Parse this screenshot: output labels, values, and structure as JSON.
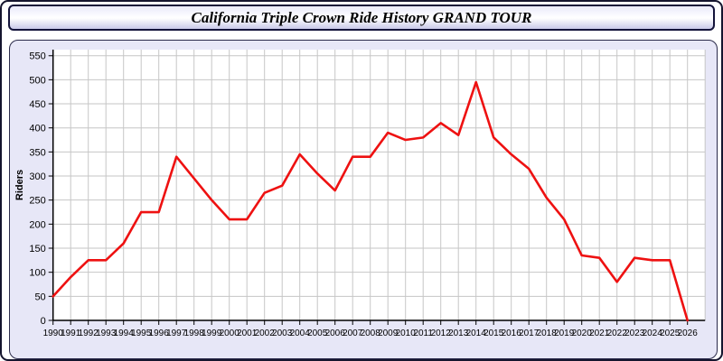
{
  "header": {
    "title": "California Triple Crown Ride History GRAND TOUR"
  },
  "chart_data": {
    "type": "line",
    "title": "California Triple Crown Ride History GRAND TOUR",
    "xlabel": "",
    "ylabel": "Riders",
    "categories": [
      "1990",
      "1991",
      "1992",
      "1993",
      "1994",
      "1995",
      "1996",
      "1997",
      "1998",
      "1999",
      "2000",
      "2001",
      "2002",
      "2003",
      "2004",
      "2005",
      "2006",
      "2007",
      "2008",
      "2009",
      "2010",
      "2011",
      "2012",
      "2013",
      "2014",
      "2015",
      "2016",
      "2017",
      "2018",
      "2019",
      "2020",
      "2021",
      "2022",
      "2023",
      "2024",
      "2025",
      "2026"
    ],
    "values": [
      50,
      90,
      125,
      125,
      160,
      225,
      225,
      340,
      295,
      250,
      210,
      210,
      265,
      280,
      345,
      305,
      270,
      340,
      340,
      390,
      375,
      380,
      410,
      385,
      495,
      380,
      345,
      315,
      255,
      210,
      135,
      130,
      80,
      130,
      125,
      125,
      0
    ],
    "ylim": [
      0,
      550
    ],
    "yticks": [
      0,
      50,
      100,
      150,
      200,
      250,
      300,
      350,
      400,
      450,
      500,
      550
    ],
    "grid": true,
    "legend": "none",
    "colors": {
      "line": "#ee1111",
      "grid": "#c6c6c6",
      "axis": "#000000",
      "plot_bg": "#ffffff",
      "panel_bg": "#e7e7f7",
      "tick_text": "#000000"
    }
  }
}
